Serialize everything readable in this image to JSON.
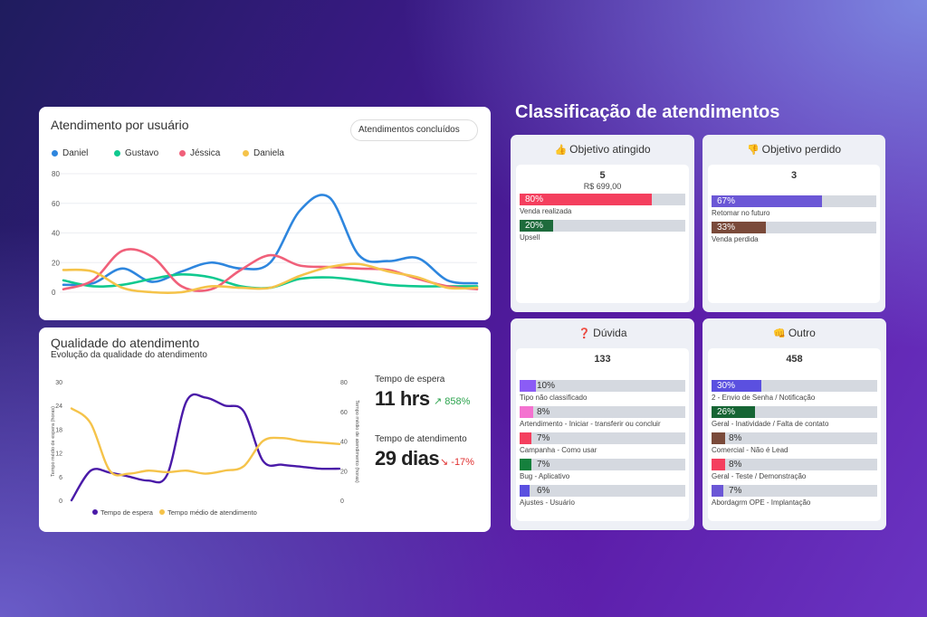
{
  "users_card": {
    "title": "Atendimento por usuário",
    "dropdown": "Atendimentos concluídos",
    "legend": [
      {
        "name": "Daniel",
        "color": "#2e86de"
      },
      {
        "name": "Gustavo",
        "color": "#10c98f"
      },
      {
        "name": "Jéssica",
        "color": "#f0607a"
      },
      {
        "name": "Daniela",
        "color": "#f5c34a"
      }
    ]
  },
  "quality_card": {
    "title": "Qualidade do atendimento",
    "subtitle": "Evolução da qualidade do atendimento",
    "wait_label": "Tempo de espera",
    "wait_value": "11 hrs",
    "wait_delta": "858%",
    "service_label": "Tempo de atendimento",
    "service_value": "29 dias",
    "service_delta": "-17%"
  },
  "classification": {
    "title": "Classificação de atendimentos",
    "panels": [
      {
        "icon": "👍",
        "icon_name": "thumbs-up-icon",
        "title": "Objetivo atingido",
        "count": "5",
        "sub": "R$ 699,00",
        "bars": [
          {
            "pct": "80%",
            "value": 80,
            "color": "#f43f5e",
            "label": "Venda realizada"
          },
          {
            "pct": "20%",
            "value": 20,
            "color": "#1e6b3c",
            "label": "Upsell"
          }
        ]
      },
      {
        "icon": "👎",
        "icon_name": "thumbs-down-icon",
        "title": "Objetivo perdido",
        "count": "3",
        "sub": "",
        "bars": [
          {
            "pct": "67%",
            "value": 67,
            "color": "#6b57d6",
            "label": "Retomar no futuro"
          },
          {
            "pct": "33%",
            "value": 33,
            "color": "#7a4a3a",
            "label": "Venda perdida"
          }
        ]
      },
      {
        "icon": "❓",
        "icon_name": "question-mark-icon",
        "title": "Dúvida",
        "count": "133",
        "sub": "",
        "bars": [
          {
            "pct": "10%",
            "value": 10,
            "color": "#8b5cf6",
            "label": "Tipo não classificado"
          },
          {
            "pct": "8%",
            "value": 8,
            "color": "#f472d0",
            "label": "Artendimento - Iniciar - transferir ou concluir"
          },
          {
            "pct": "7%",
            "value": 7,
            "color": "#f43f5e",
            "label": "Campanha - Como usar"
          },
          {
            "pct": "7%",
            "value": 7,
            "color": "#15803d",
            "label": "Bug - Aplicativo"
          },
          {
            "pct": "6%",
            "value": 6,
            "color": "#5b50e0",
            "label": "Ajustes - Usuário"
          }
        ]
      },
      {
        "icon": "👊",
        "icon_name": "fist-icon",
        "title": "Outro",
        "count": "458",
        "sub": "",
        "bars": [
          {
            "pct": "30%",
            "value": 30,
            "color": "#5b50e0",
            "label": "2 - Envio de Senha / Notificação"
          },
          {
            "pct": "26%",
            "value": 26,
            "color": "#166534",
            "label": "Geral - Inatividade / Falta de contato"
          },
          {
            "pct": "8%",
            "value": 8,
            "color": "#7a4a3a",
            "label": "Comercial - Não é Lead"
          },
          {
            "pct": "8%",
            "value": 8,
            "color": "#f43f5e",
            "label": "Geral - Teste / Demonstração"
          },
          {
            "pct": "7%",
            "value": 7,
            "color": "#6b57d6",
            "label": "Abordagrm OPE - Implantação"
          }
        ]
      }
    ]
  },
  "chart_data": [
    {
      "type": "line",
      "title": "Atendimento por usuário",
      "ylim": [
        0,
        80
      ],
      "yticks": [
        0,
        20,
        40,
        60,
        80
      ],
      "x": [
        0,
        1,
        2,
        3,
        4,
        5,
        6,
        7,
        8,
        9,
        10,
        11,
        12,
        13,
        14
      ],
      "series": [
        {
          "name": "Daniel",
          "color": "#2e86de",
          "values": [
            5,
            6,
            16,
            7,
            14,
            20,
            16,
            20,
            55,
            64,
            25,
            21,
            23,
            8,
            6
          ]
        },
        {
          "name": "Gustavo",
          "color": "#10c98f",
          "values": [
            8,
            4,
            5,
            9,
            12,
            10,
            4,
            3,
            9,
            10,
            8,
            5,
            4,
            4,
            4
          ]
        },
        {
          "name": "Jéssica",
          "color": "#f0607a",
          "values": [
            2,
            8,
            28,
            24,
            4,
            2,
            15,
            25,
            18,
            17,
            16,
            15,
            9,
            4,
            2
          ]
        },
        {
          "name": "Daniela",
          "color": "#f5c34a",
          "values": [
            15,
            14,
            3,
            0,
            0,
            4,
            3,
            3,
            11,
            17,
            19,
            14,
            10,
            3,
            3
          ]
        }
      ]
    },
    {
      "type": "line",
      "title": "Qualidade do atendimento",
      "y_left_label": "Tempo médio de espera (horas)",
      "y_right_label": "Tempo médio de atendimento (horas)",
      "y_left_ticks": [
        0,
        6,
        12,
        18,
        24,
        30
      ],
      "y_right_ticks": [
        0,
        20,
        40,
        60,
        80
      ],
      "ylim_left": [
        0,
        30
      ],
      "ylim_right": [
        0,
        80
      ],
      "x": [
        0,
        1,
        2,
        3,
        4,
        5,
        6,
        7,
        8,
        9,
        10,
        11,
        12,
        13,
        14
      ],
      "series": [
        {
          "name": "Tempo de espera",
          "axis": "left",
          "color": "#4a1aa8",
          "values": [
            0,
            7.5,
            7,
            6,
            5,
            6.5,
            25,
            26,
            24,
            22.5,
            10,
            9,
            8.5,
            8,
            8
          ]
        },
        {
          "name": "Tempo médio de atendimento",
          "axis": "right",
          "color": "#f5c34a",
          "values": [
            62,
            52,
            20,
            18,
            20,
            19,
            20,
            18,
            20,
            23,
            40,
            42,
            40,
            39,
            38
          ]
        }
      ]
    }
  ]
}
